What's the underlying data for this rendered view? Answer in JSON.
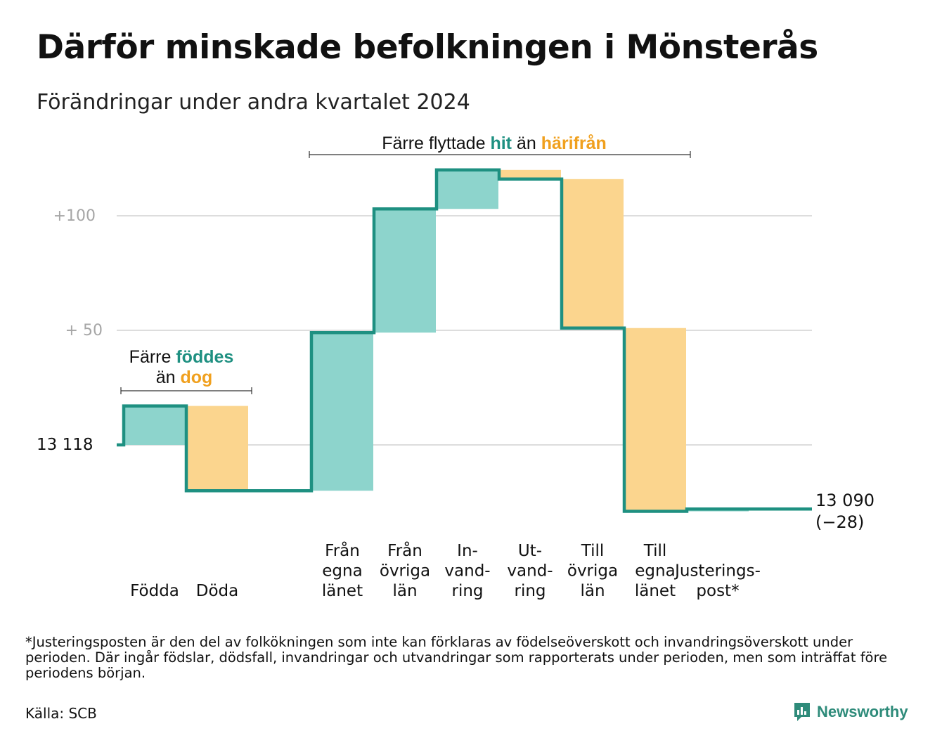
{
  "title": "Därför minskade befolkningen i Mönsterås",
  "subtitle": "Förändringar under andra kvartalet 2024",
  "footnote": "*Justeringsposten är den del av folkökningen som inte kan förklaras av födelseöverskott och invandringsöverskott under perioden. Där ingår födslar, dödsfall, invandringar och utvandringar som rapporterats under perioden, men som inträffat före periodens början.",
  "source": "Källa: SCB",
  "brand": "Newsworthy",
  "colors": {
    "positive": "#8dd4cc",
    "negative": "#fbd58e",
    "line": "#1e9081",
    "grid": "#dddddd"
  },
  "chart_data": {
    "type": "waterfall",
    "start_value": 13118,
    "end_value": 13090,
    "end_label": "13 090",
    "end_change_label": "(−28)",
    "baseline_label": "13  118",
    "yticks": [
      {
        "value": 50,
        "label": "+  50"
      },
      {
        "value": 100,
        "label": "+100"
      }
    ],
    "ylim": [
      -40,
      120
    ],
    "categories": [
      {
        "label": [
          "Födda"
        ],
        "change": 17
      },
      {
        "label": [
          "Döda"
        ],
        "change": -37
      },
      {
        "label": [
          ""
        ],
        "change": 0
      },
      {
        "label": [
          "Från",
          "egna",
          "länet"
        ],
        "change": 69
      },
      {
        "label": [
          "Från",
          "övriga",
          "län"
        ],
        "change": 54
      },
      {
        "label": [
          "In-",
          "vand-",
          "ring"
        ],
        "change": 17
      },
      {
        "label": [
          "Ut-",
          "vand-",
          "ring"
        ],
        "change": -4
      },
      {
        "label": [
          "Till",
          "övriga",
          "län"
        ],
        "change": -65
      },
      {
        "label": [
          "Till",
          "egna",
          "länet"
        ],
        "change": -80
      },
      {
        "label": [
          "Justerings-",
          "post*"
        ],
        "change": 1
      }
    ],
    "annotations": [
      {
        "parts": [
          "Färre ",
          "föddes"
        ],
        "line2": [
          "än ",
          "dog"
        ],
        "highlight_pos": "föddes",
        "highlight_neg": "dog"
      },
      {
        "parts": [
          "Färre flyttade ",
          "hit",
          " än ",
          "härifrån"
        ]
      }
    ]
  }
}
